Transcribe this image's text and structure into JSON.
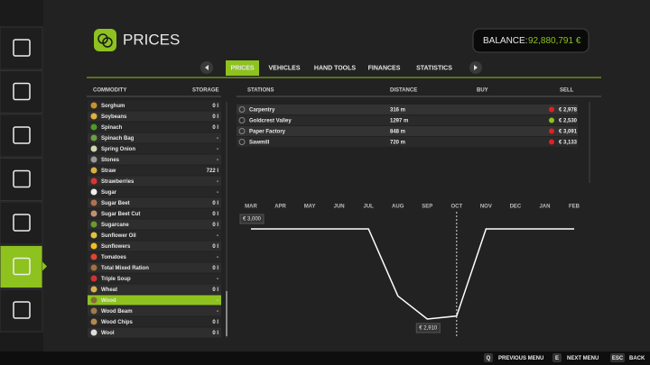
{
  "header": {
    "title": "PRICES",
    "balance_label": "BALANCE:",
    "balance": "92,880,791 €"
  },
  "tabs": [
    "PRICES",
    "VEHICLES",
    "HAND TOOLS",
    "FINANCES",
    "STATISTICS"
  ],
  "active_tab": 0,
  "columns": {
    "commodity": "COMMODITY",
    "storage": "STORAGE",
    "stations": "STATIONS",
    "distance": "DISTANCE",
    "buy": "BUY",
    "sell": "SELL"
  },
  "commodities": [
    {
      "name": "Sorghum",
      "storage": "0 l"
    },
    {
      "name": "Soybeans",
      "storage": "0 l"
    },
    {
      "name": "Spinach",
      "storage": "0 l"
    },
    {
      "name": "Spinach Bag",
      "storage": "-"
    },
    {
      "name": "Spring Onion",
      "storage": "-"
    },
    {
      "name": "Stones",
      "storage": "-"
    },
    {
      "name": "Straw",
      "storage": "722 l"
    },
    {
      "name": "Strawberries",
      "storage": "-"
    },
    {
      "name": "Sugar",
      "storage": "-"
    },
    {
      "name": "Sugar Beet",
      "storage": "0 l"
    },
    {
      "name": "Sugar Beet Cut",
      "storage": "0 l"
    },
    {
      "name": "Sugarcane",
      "storage": "0 l"
    },
    {
      "name": "Sunflower Oil",
      "storage": "-"
    },
    {
      "name": "Sunflowers",
      "storage": "0 l"
    },
    {
      "name": "Tomatoes",
      "storage": "-"
    },
    {
      "name": "Total Mixed Ration",
      "storage": "0 l"
    },
    {
      "name": "Triple Soup",
      "storage": "-"
    },
    {
      "name": "Wheat",
      "storage": "0 l"
    },
    {
      "name": "Wood",
      "storage": "-"
    },
    {
      "name": "Wood Beam",
      "storage": "-"
    },
    {
      "name": "Wood Chips",
      "storage": "0 l"
    },
    {
      "name": "Wool",
      "storage": "0 l"
    }
  ],
  "selected_commodity": 18,
  "stations": [
    {
      "name": "Carpentry",
      "distance": "316 m",
      "trend": "down",
      "price": "€ 2,978"
    },
    {
      "name": "Goldcrest Valley",
      "distance": "1297 m",
      "trend": "up",
      "price": "€ 2,530"
    },
    {
      "name": "Paper Factory",
      "distance": "848 m",
      "trend": "down",
      "price": "€ 3,091"
    },
    {
      "name": "Sawmill",
      "distance": "720 m",
      "trend": "down",
      "price": "€ 3,133"
    }
  ],
  "chart": {
    "type": "line",
    "categories": [
      "MAR",
      "APR",
      "MAY",
      "JUN",
      "JUL",
      "AUG",
      "SEP",
      "OCT",
      "NOV",
      "DEC",
      "JAN",
      "FEB"
    ],
    "values": [
      3000,
      3000,
      3000,
      3000,
      3000,
      2933,
      2910,
      2913,
      3000,
      3000,
      3000,
      3000
    ],
    "value_labels": [
      "€ 3,000",
      null,
      null,
      null,
      null,
      null,
      "€ 2,910",
      null,
      null,
      null,
      null,
      null
    ],
    "highlight_index": 7
  },
  "footer": [
    {
      "key": "Q",
      "label": "PREVIOUS MENU"
    },
    {
      "key": "E",
      "label": "NEXT MENU"
    },
    {
      "key": "ESC",
      "label": "BACK"
    }
  ]
}
